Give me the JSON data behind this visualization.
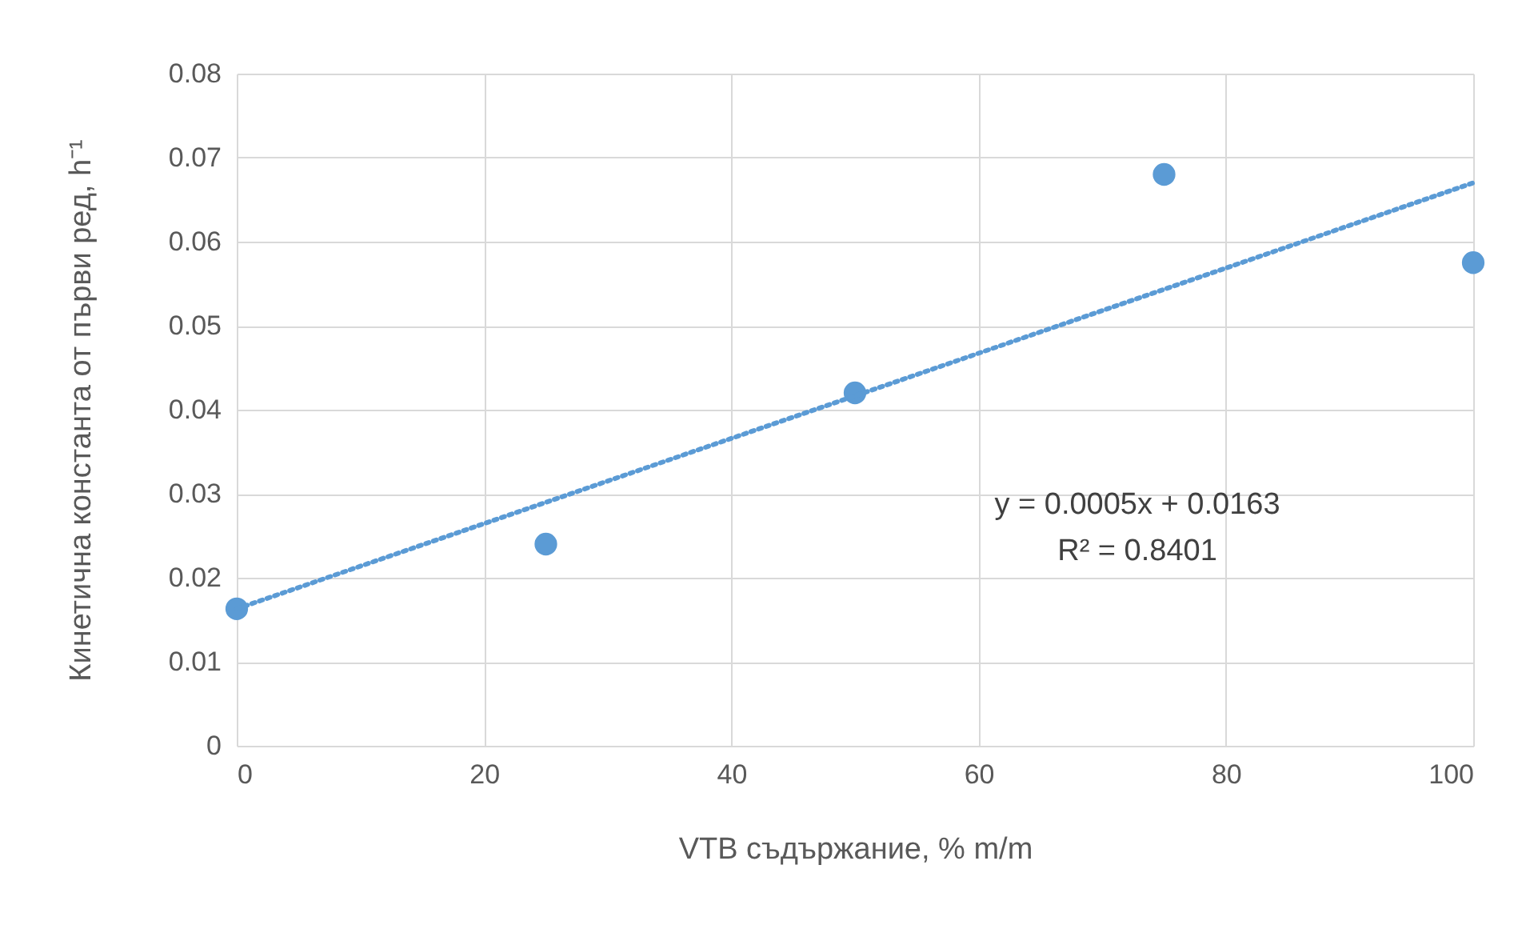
{
  "chart_data": {
    "type": "scatter",
    "xlabel": "VTB съдържание, % m/m",
    "ylabel": "Кинетична константа от първи ред, h⁻¹",
    "x": [
      0,
      25,
      50,
      75,
      100
    ],
    "series": [
      {
        "color": "#5b9bd5",
        "marker": "circle",
        "values": [
          0.0163,
          0.024,
          0.042,
          0.068,
          0.0575
        ]
      },
      {
        "type": "line",
        "color": "#5b9bd5",
        "line_style": "dotted",
        "marker": "none",
        "x": [
          0,
          100
        ],
        "values": [
          0.0163,
          0.067
        ]
      }
    ],
    "annotations": [
      "y = 0.0005x + 0.0163",
      "R² = 0.8401"
    ],
    "xlim": [
      0,
      100
    ],
    "xticks": [
      0,
      20,
      40,
      60,
      80,
      100
    ],
    "ylim": [
      0,
      0.08
    ],
    "yticks": [
      0,
      0.01,
      0.02,
      0.03,
      0.04,
      0.05,
      0.06,
      0.07,
      0.08
    ],
    "grid": true
  }
}
